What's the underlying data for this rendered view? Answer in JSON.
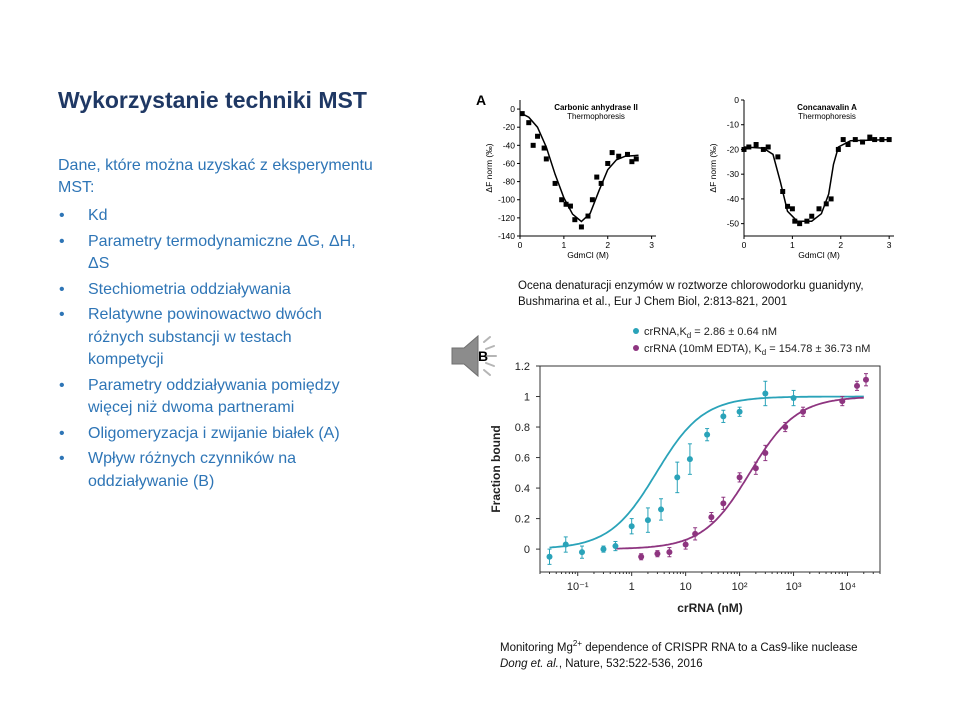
{
  "slide": {
    "title": "Wykorzystanie techniki MST",
    "intro": "Dane, które można uzyskać z eksperymentu MST:",
    "bullets": [
      "Kd",
      "Parametry termodynamiczne ΔG, ΔH, ΔS",
      "Stechiometria oddziaływania",
      "Relatywne powinowactwo dwóch różnych substancji w testach kompetycji",
      "Parametry oddziaływania pomiędzy więcej niż dwoma partnerami",
      "Oligomeryzacja i zwijanie białek (A)",
      "Wpływ różnych czynników na oddziaływanie (B)"
    ]
  },
  "figure_a": {
    "panel_label": "A",
    "caption": "Ocena denaturacji enzymów w roztworze chlorowodorku guanidyny,  Bushmarina et al., Eur J Chem Biol, 2:813-821, 2001"
  },
  "figure_b": {
    "panel_label": "B",
    "caption_prefix": "Monitoring Mg",
    "caption_sup": "2+",
    "caption_mid": " dependence of CRISPR RNA to a Cas9-like nuclease ",
    "caption_authors": "Dong et. al.",
    "caption_suffix": ", Nature, 532:522-536, 2016"
  },
  "icons": {
    "speaker": "speaker-icon"
  },
  "chart_data": [
    {
      "type": "scatter",
      "title": "Carbonic anhydrase II",
      "subtitle": "Thermophoresis",
      "xlabel": "GdmCl (M)",
      "ylabel": "ΔF norm (‰)",
      "xlim": [
        0,
        3.1
      ],
      "ylim": [
        -140,
        10
      ],
      "xticks": [
        0,
        1,
        2,
        3
      ],
      "yticks": [
        0,
        -20,
        -40,
        -60,
        -80,
        -100,
        -120,
        -140
      ],
      "color": "#000000",
      "points": [
        [
          0.05,
          -5
        ],
        [
          0.2,
          -15
        ],
        [
          0.3,
          -40
        ],
        [
          0.4,
          -30
        ],
        [
          0.55,
          -43
        ],
        [
          0.6,
          -55
        ],
        [
          0.8,
          -82
        ],
        [
          0.95,
          -100
        ],
        [
          1.05,
          -105
        ],
        [
          1.15,
          -107
        ],
        [
          1.25,
          -122
        ],
        [
          1.4,
          -130
        ],
        [
          1.55,
          -118
        ],
        [
          1.65,
          -100
        ],
        [
          1.75,
          -75
        ],
        [
          1.85,
          -82
        ],
        [
          2.0,
          -60
        ],
        [
          2.1,
          -48
        ],
        [
          2.25,
          -52
        ],
        [
          2.45,
          -50
        ],
        [
          2.55,
          -58
        ],
        [
          2.65,
          -55
        ]
      ],
      "fit": [
        [
          0,
          -4
        ],
        [
          0.2,
          -9
        ],
        [
          0.4,
          -20
        ],
        [
          0.6,
          -42
        ],
        [
          0.8,
          -72
        ],
        [
          1.0,
          -98
        ],
        [
          1.2,
          -116
        ],
        [
          1.4,
          -124
        ],
        [
          1.6,
          -115
        ],
        [
          1.8,
          -90
        ],
        [
          2.0,
          -67
        ],
        [
          2.2,
          -56
        ],
        [
          2.4,
          -52
        ],
        [
          2.7,
          -51
        ]
      ]
    },
    {
      "type": "scatter",
      "title": "Concanavalin A",
      "subtitle": "Thermophoresis",
      "xlabel": "GdmCl (M)",
      "ylabel": "ΔF norm (‰)",
      "xlim": [
        0,
        3.1
      ],
      "ylim": [
        -55,
        0
      ],
      "xticks": [
        0,
        1,
        2,
        3
      ],
      "yticks": [
        0,
        -10,
        -20,
        -30,
        -40,
        -50
      ],
      "color": "#000000",
      "points": [
        [
          0.0,
          -20
        ],
        [
          0.1,
          -19
        ],
        [
          0.25,
          -18
        ],
        [
          0.4,
          -20
        ],
        [
          0.5,
          -19
        ],
        [
          0.7,
          -23
        ],
        [
          0.8,
          -37
        ],
        [
          0.9,
          -43
        ],
        [
          1.0,
          -44
        ],
        [
          1.05,
          -49
        ],
        [
          1.15,
          -50
        ],
        [
          1.3,
          -49
        ],
        [
          1.4,
          -47
        ],
        [
          1.55,
          -44
        ],
        [
          1.7,
          -42
        ],
        [
          1.8,
          -40
        ],
        [
          1.95,
          -20
        ],
        [
          2.05,
          -16
        ],
        [
          2.15,
          -18
        ],
        [
          2.3,
          -16
        ],
        [
          2.45,
          -17
        ],
        [
          2.6,
          -15
        ],
        [
          2.7,
          -16
        ],
        [
          2.85,
          -16
        ],
        [
          3.0,
          -16
        ]
      ],
      "fit": [
        [
          0,
          -19
        ],
        [
          0.4,
          -19.5
        ],
        [
          0.6,
          -22
        ],
        [
          0.75,
          -33
        ],
        [
          0.9,
          -45
        ],
        [
          1.1,
          -49
        ],
        [
          1.4,
          -49
        ],
        [
          1.6,
          -46
        ],
        [
          1.75,
          -38
        ],
        [
          1.85,
          -26
        ],
        [
          1.95,
          -19
        ],
        [
          2.2,
          -16.5
        ],
        [
          3.0,
          -16
        ]
      ]
    },
    {
      "type": "scatter",
      "xlabel": "crRNA (nM)",
      "ylabel": "Fraction bound",
      "xscale": "log",
      "xlim": [
        0.02,
        40000
      ],
      "ylim": [
        -0.15,
        1.2
      ],
      "xticks": [
        0.1,
        1,
        10,
        100,
        1000,
        10000
      ],
      "xtick_labels": [
        "10⁻¹",
        "1",
        "10",
        "10²",
        "10³",
        "10⁴"
      ],
      "yticks": [
        0,
        0.2,
        0.4,
        0.6,
        0.8,
        1,
        1.2
      ],
      "ytick_labels": [
        "0",
        "0.2",
        "0.4",
        "0.6",
        "0.8",
        "1",
        "1.2"
      ],
      "grid": false,
      "legend": "top",
      "series": [
        {
          "name": "crRNA,K",
          "name_sub": "d",
          "name_suffix": " = 2.86 ± 0.64 nM",
          "color": "#2aa3b9",
          "kd": 2.86,
          "points": [
            [
              0.03,
              -0.05,
              0.05
            ],
            [
              0.06,
              0.03,
              0.05
            ],
            [
              0.12,
              -0.02,
              0.04
            ],
            [
              0.3,
              0.0,
              0.02
            ],
            [
              0.5,
              0.02,
              0.03
            ],
            [
              1.0,
              0.15,
              0.05
            ],
            [
              2.0,
              0.19,
              0.08
            ],
            [
              3.5,
              0.26,
              0.07
            ],
            [
              7.0,
              0.47,
              0.1
            ],
            [
              12.0,
              0.59,
              0.1
            ],
            [
              25.0,
              0.75,
              0.04
            ],
            [
              50.0,
              0.87,
              0.04
            ],
            [
              100.0,
              0.9,
              0.03
            ],
            [
              300.0,
              1.02,
              0.08
            ],
            [
              1000.0,
              0.99,
              0.05
            ]
          ]
        },
        {
          "name": "crRNA (10mM EDTA), K",
          "name_sub": "d",
          "name_suffix": " = 154.78 ± 36.73 nM",
          "color": "#8e3580",
          "kd": 154.78,
          "points": [
            [
              1.5,
              -0.05,
              0.02
            ],
            [
              3.0,
              -0.03,
              0.02
            ],
            [
              5.0,
              -0.02,
              0.03
            ],
            [
              10.0,
              0.03,
              0.03
            ],
            [
              15.0,
              0.1,
              0.04
            ],
            [
              30.0,
              0.21,
              0.03
            ],
            [
              50.0,
              0.3,
              0.04
            ],
            [
              100.0,
              0.47,
              0.03
            ],
            [
              200.0,
              0.53,
              0.04
            ],
            [
              300.0,
              0.63,
              0.05
            ],
            [
              700.0,
              0.8,
              0.03
            ],
            [
              1500.0,
              0.9,
              0.03
            ],
            [
              8000.0,
              0.97,
              0.03
            ],
            [
              15000.0,
              1.07,
              0.03
            ],
            [
              22000.0,
              1.11,
              0.04
            ]
          ]
        }
      ]
    }
  ]
}
